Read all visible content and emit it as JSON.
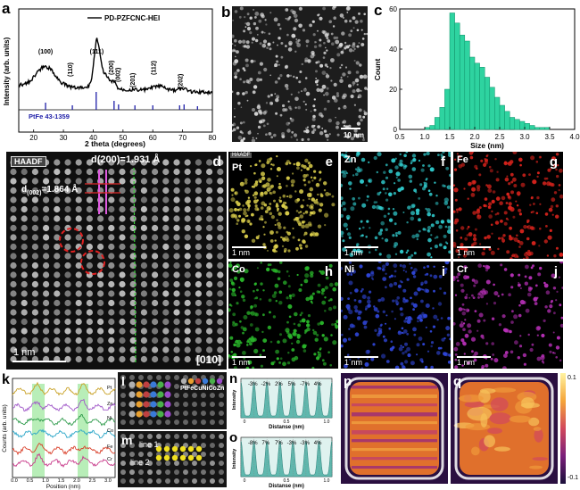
{
  "labels": {
    "a": "a",
    "b": "b",
    "c": "c",
    "d": "d",
    "e": "e",
    "f": "f",
    "g": "g",
    "h": "h",
    "i": "i",
    "j": "j",
    "k": "k",
    "l": "l",
    "m": "m",
    "n": "n",
    "o": "o",
    "p": "p",
    "q": "q"
  },
  "panel_a": {
    "legend": "PD-PZFCNC-HEI",
    "xlabel": "2 theta (degrees)",
    "ylabel": "Intensity (arb. units)",
    "ref_label": "PtFe 43-1359",
    "xticks": [
      "20",
      "30",
      "40",
      "50",
      "60",
      "70",
      "80"
    ],
    "peaks": [
      "(100)",
      "(110)",
      "(111)",
      "(200)",
      "(002)",
      "(201)",
      "(112)",
      "(202)"
    ],
    "ref_color": "#1f1fa8"
  },
  "panel_b": {
    "scale": "10 nm"
  },
  "chart_data": [
    {
      "type": "bar",
      "title": "",
      "xlabel": "Size (nm)",
      "ylabel": "Count",
      "xlim": [
        0.5,
        4.0
      ],
      "ylim": [
        0,
        60
      ],
      "xticks": [
        "0.5",
        "1.0",
        "1.5",
        "2.0",
        "2.5",
        "3.0",
        "3.5",
        "4.0"
      ],
      "yticks": [
        "0",
        "20",
        "40",
        "60"
      ],
      "bin_width": 0.1,
      "bins": [
        1.0,
        1.1,
        1.2,
        1.3,
        1.4,
        1.5,
        1.6,
        1.7,
        1.8,
        1.9,
        2.0,
        2.1,
        2.2,
        2.3,
        2.4,
        2.5,
        2.6,
        2.7,
        2.8,
        2.9,
        3.0,
        3.1,
        3.2,
        3.3,
        3.4
      ],
      "values": [
        1,
        2,
        6,
        11,
        20,
        58,
        53,
        47,
        44,
        36,
        33,
        31,
        26,
        21,
        16,
        12,
        9,
        6,
        5,
        4,
        3,
        2,
        1,
        1,
        1
      ],
      "color": "#2ed3a0"
    }
  ],
  "panel_d": {
    "mode": "HAADF",
    "d200": "d(200)=1.931 Å",
    "d002_prefix": "d",
    "d002_sub": "(002)",
    "d002_value": "=1.864 Å",
    "scale": "1 nm",
    "zone": "[010]"
  },
  "maps": [
    {
      "id": "e",
      "element": "Pt",
      "tag": "HAADF",
      "color": "#d8cc4a",
      "scale": "1 nm"
    },
    {
      "id": "f",
      "element": "Zn",
      "color": "#2fc6c8",
      "scale": "1 nm"
    },
    {
      "id": "g",
      "element": "Fe",
      "color": "#d9231c",
      "scale": "1 nm"
    },
    {
      "id": "h",
      "element": "Co",
      "color": "#29b42a",
      "scale": "1 nm"
    },
    {
      "id": "i",
      "element": "Ni",
      "color": "#2f46d8",
      "scale": "1 nm"
    },
    {
      "id": "j",
      "element": "Cr",
      "color": "#b52fb5",
      "scale": "1 nm"
    }
  ],
  "panel_k": {
    "ylabel": "Counts (arb. units)",
    "xlabel": "Position (nm)",
    "xticks": [
      "0.0",
      "0.5",
      "1.0",
      "1.5",
      "2.0",
      "2.5",
      "3.0"
    ],
    "traces": [
      {
        "name": "Pt",
        "color": "#c9a227"
      },
      {
        "name": "Zn",
        "color": "#a058c8"
      },
      {
        "name": "Ni",
        "color": "#2d9a4a"
      },
      {
        "name": "Co",
        "color": "#2aa6c8"
      },
      {
        "name": "Fe",
        "color": "#d9402a"
      },
      {
        "name": "Cr",
        "color": "#c83a8a"
      }
    ]
  },
  "panel_l": {
    "legend": "PtFeCuNiCoZn"
  },
  "panel_m": {
    "line1": "line 1",
    "line2": "line 2"
  },
  "panel_n": {
    "ylabel": "Intensity",
    "xlabel": "Distanse (nm)",
    "strain": [
      "-3%",
      "-2%",
      "2%",
      "5%",
      "-7%",
      "4%"
    ],
    "xticks": [
      "0",
      "0.5",
      "1.0"
    ]
  },
  "panel_o": {
    "ylabel": "Intensity",
    "xlabel": "Distanse (nm)",
    "strain": [
      "-8%",
      "7%",
      "7%",
      "-3%",
      "-3%",
      "4%"
    ],
    "xticks": [
      "0",
      "0.5",
      "1.0"
    ]
  },
  "colorbar": {
    "max": "0.1",
    "min": "-0.1"
  }
}
